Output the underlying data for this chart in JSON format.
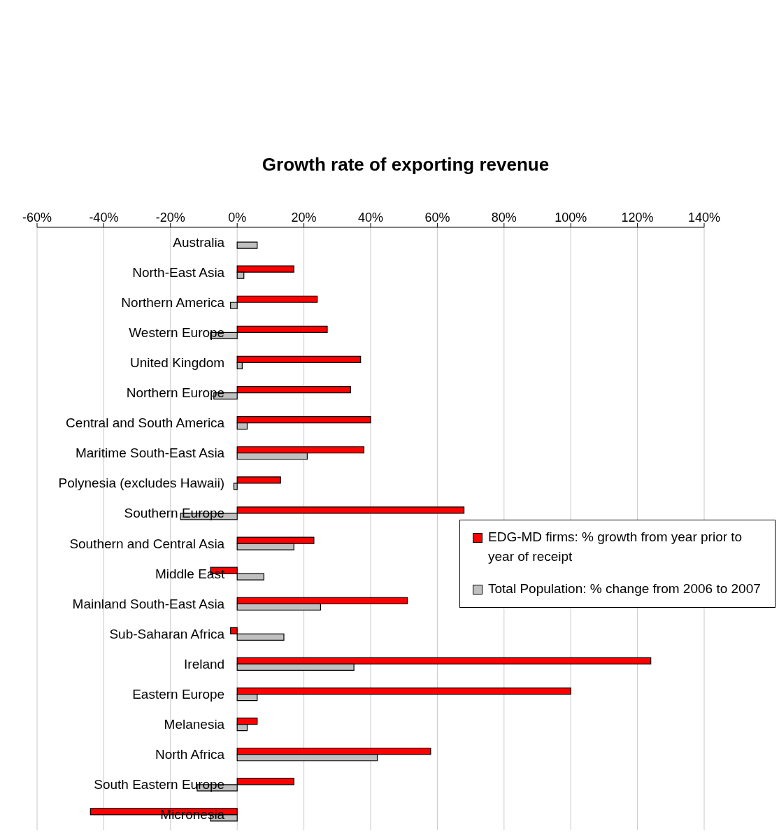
{
  "chart_data": {
    "type": "bar",
    "orientation": "horizontal",
    "title": "Growth rate of exporting revenue",
    "categories": [
      "Australia",
      "North-East Asia",
      "Northern America",
      "Western Europe",
      "United Kingdom",
      "Northern Europe",
      "Central  and South America",
      "Maritime South-East Asia",
      "Polynesia (excludes Hawaii)",
      "Southern Europe",
      "Southern and Central Asia",
      "Middle East",
      "Mainland South-East Asia",
      "Sub-Saharan Africa",
      "Ireland",
      "Eastern Europe",
      "Melanesia",
      "North Africa",
      "South Eastern Europe",
      "Micronesia"
    ],
    "series": [
      {
        "name": "EDG-MD firms: % growth from year prior to year of receipt",
        "color": "#ff0000",
        "values": [
          null,
          17,
          24,
          27,
          37,
          34,
          40,
          38,
          13,
          68,
          23,
          -8,
          51,
          -2,
          124,
          100,
          6,
          58,
          17,
          -44
        ]
      },
      {
        "name": "Total Population: % change from 2006 to 2007",
        "color": "#c0c0c0",
        "values": [
          6,
          2,
          -2,
          -8,
          1.5,
          -7,
          3,
          21,
          -1,
          -17,
          17,
          8,
          25,
          14,
          35,
          6,
          3,
          42,
          -12,
          -8
        ]
      }
    ],
    "xlim": [
      -60,
      140
    ],
    "xticks": [
      {
        "value": -60,
        "label": "-60%"
      },
      {
        "value": -40,
        "label": "-40%"
      },
      {
        "value": -20,
        "label": "-20%"
      },
      {
        "value": 0,
        "label": "0%"
      },
      {
        "value": 20,
        "label": "20%"
      },
      {
        "value": 40,
        "label": "40%"
      },
      {
        "value": 60,
        "label": "60%"
      },
      {
        "value": 80,
        "label": "80%"
      },
      {
        "value": 100,
        "label": "100%"
      },
      {
        "value": 120,
        "label": "120%"
      },
      {
        "value": 140,
        "label": "140%"
      }
    ],
    "grid": "x",
    "legend": "right"
  }
}
